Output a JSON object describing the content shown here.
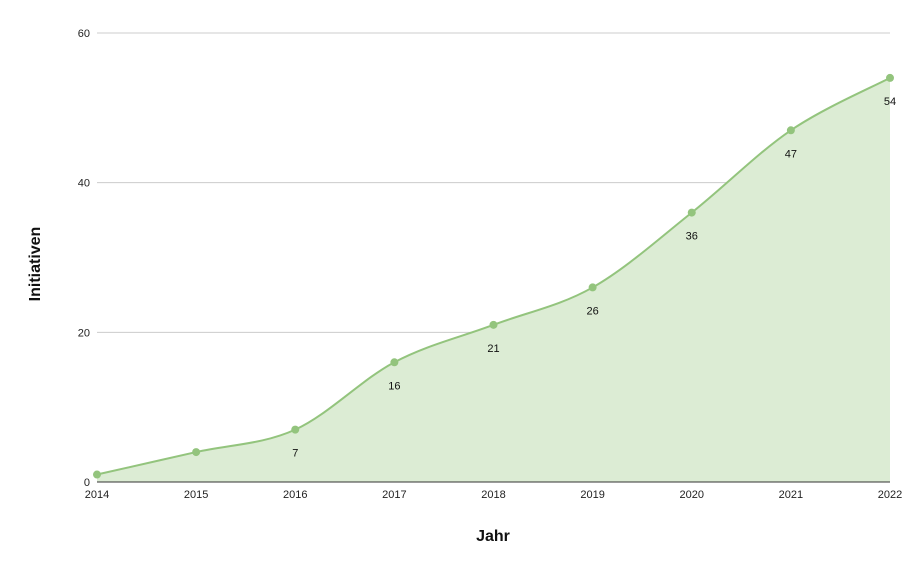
{
  "chart_data": {
    "type": "area",
    "title": "",
    "xlabel": "Jahr",
    "ylabel": "Initiativen",
    "x": [
      2014,
      2015,
      2016,
      2017,
      2018,
      2019,
      2020,
      2021,
      2022
    ],
    "x_tick_labels": [
      "2014",
      "2015",
      "2016",
      "2017",
      "2018",
      "2019",
      "2020",
      "2021",
      "2022"
    ],
    "series": [
      {
        "values": [
          1,
          4,
          7,
          16,
          21,
          26,
          36,
          47,
          54
        ]
      }
    ],
    "data_labels": [
      "",
      "",
      "7",
      "16",
      "21",
      "26",
      "36",
      "47",
      "54"
    ],
    "y_ticks": [
      0,
      20,
      40,
      60
    ],
    "y_tick_labels": [
      "0",
      "20",
      "40",
      "60"
    ],
    "ylim": [
      0,
      60
    ],
    "xlim": [
      2014,
      2022
    ],
    "grid": true,
    "legend": "none",
    "colors": {
      "line": "#93c47d",
      "fill": "#dcecd4",
      "grid": "#cccccc",
      "axis": "#333333"
    }
  }
}
